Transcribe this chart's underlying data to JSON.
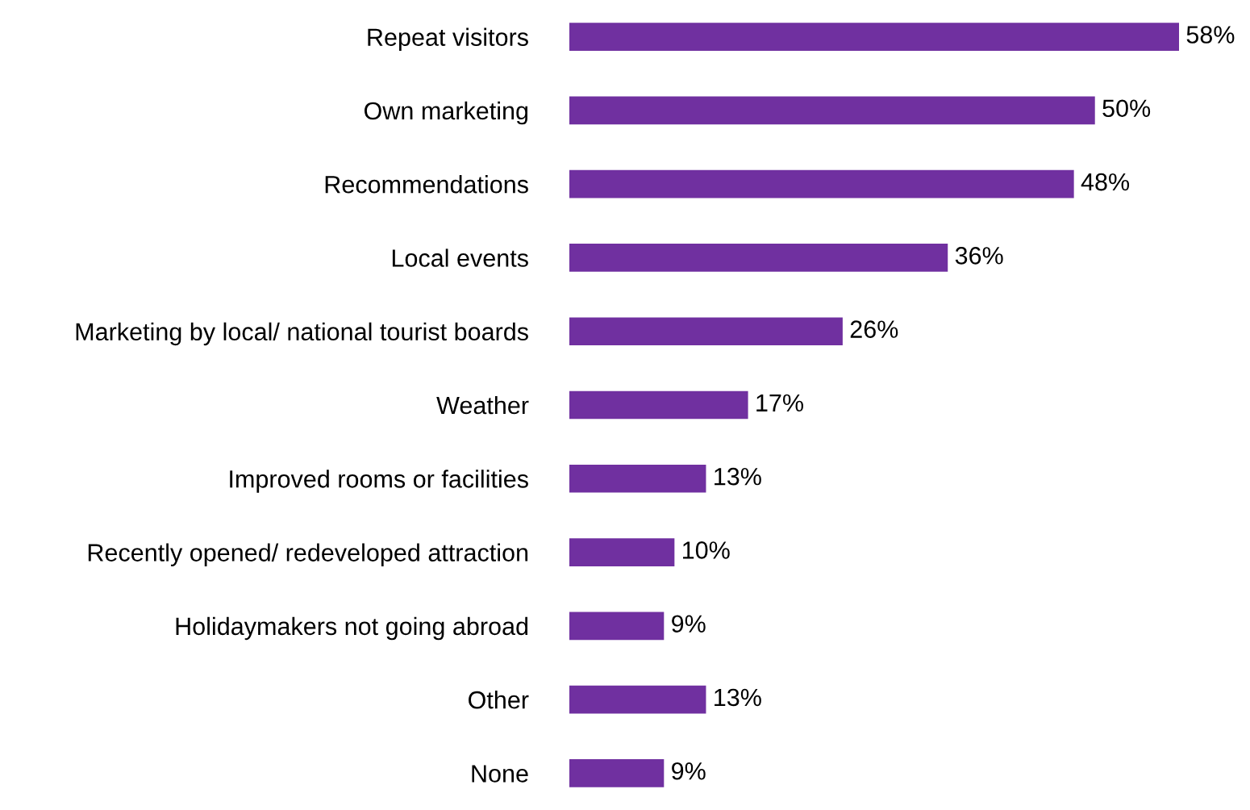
{
  "chart_data": {
    "type": "bar",
    "orientation": "horizontal",
    "categories": [
      "Repeat visitors",
      "Own marketing",
      "Recommendations",
      "Local events",
      "Marketing by local/ national tourist boards",
      "Weather",
      "Improved rooms or facilities",
      "Recently opened/ redeveloped attraction",
      "Holidaymakers not going abroad",
      "Other",
      "None"
    ],
    "values": [
      58,
      50,
      48,
      36,
      26,
      17,
      13,
      10,
      9,
      13,
      9
    ],
    "value_labels": [
      "58%",
      "50%",
      "48%",
      "36%",
      "26%",
      "17%",
      "13%",
      "10%",
      "9%",
      "13%",
      "9%"
    ],
    "color": "#7030a0",
    "grid": false,
    "legend": false
  }
}
